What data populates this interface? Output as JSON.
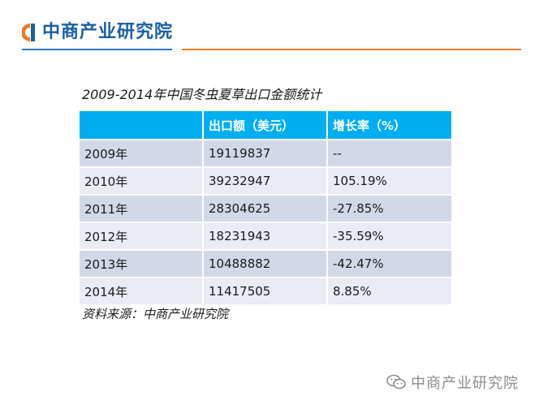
{
  "brand": {
    "name": "中商产业研究院",
    "primary_color": "#1a5fa6",
    "accent_color": "#ef7c22",
    "logo_icon": "ci-logo-icon"
  },
  "table": {
    "title": "2009-2014年中国冬虫夏草出口金额统计",
    "header_color": "#00aef0",
    "columns": [
      "",
      "出口额（美元）",
      "增长率（%）"
    ],
    "rows": [
      {
        "year": "2009年",
        "export": "19119837",
        "growth": "--"
      },
      {
        "year": "2010年",
        "export": "39232947",
        "growth": "105.19%"
      },
      {
        "year": "2011年",
        "export": "28304625",
        "growth": "-27.85%"
      },
      {
        "year": "2012年",
        "export": "18231943",
        "growth": "-35.59%"
      },
      {
        "year": "2013年",
        "export": "10488882",
        "growth": "-42.47%"
      },
      {
        "year": "2014年",
        "export": "11417505",
        "growth": "8.85%"
      }
    ]
  },
  "source": "资料来源：中商产业研究院",
  "watermark": {
    "icon": "wechat-icon",
    "text": "中商产业研究院"
  }
}
